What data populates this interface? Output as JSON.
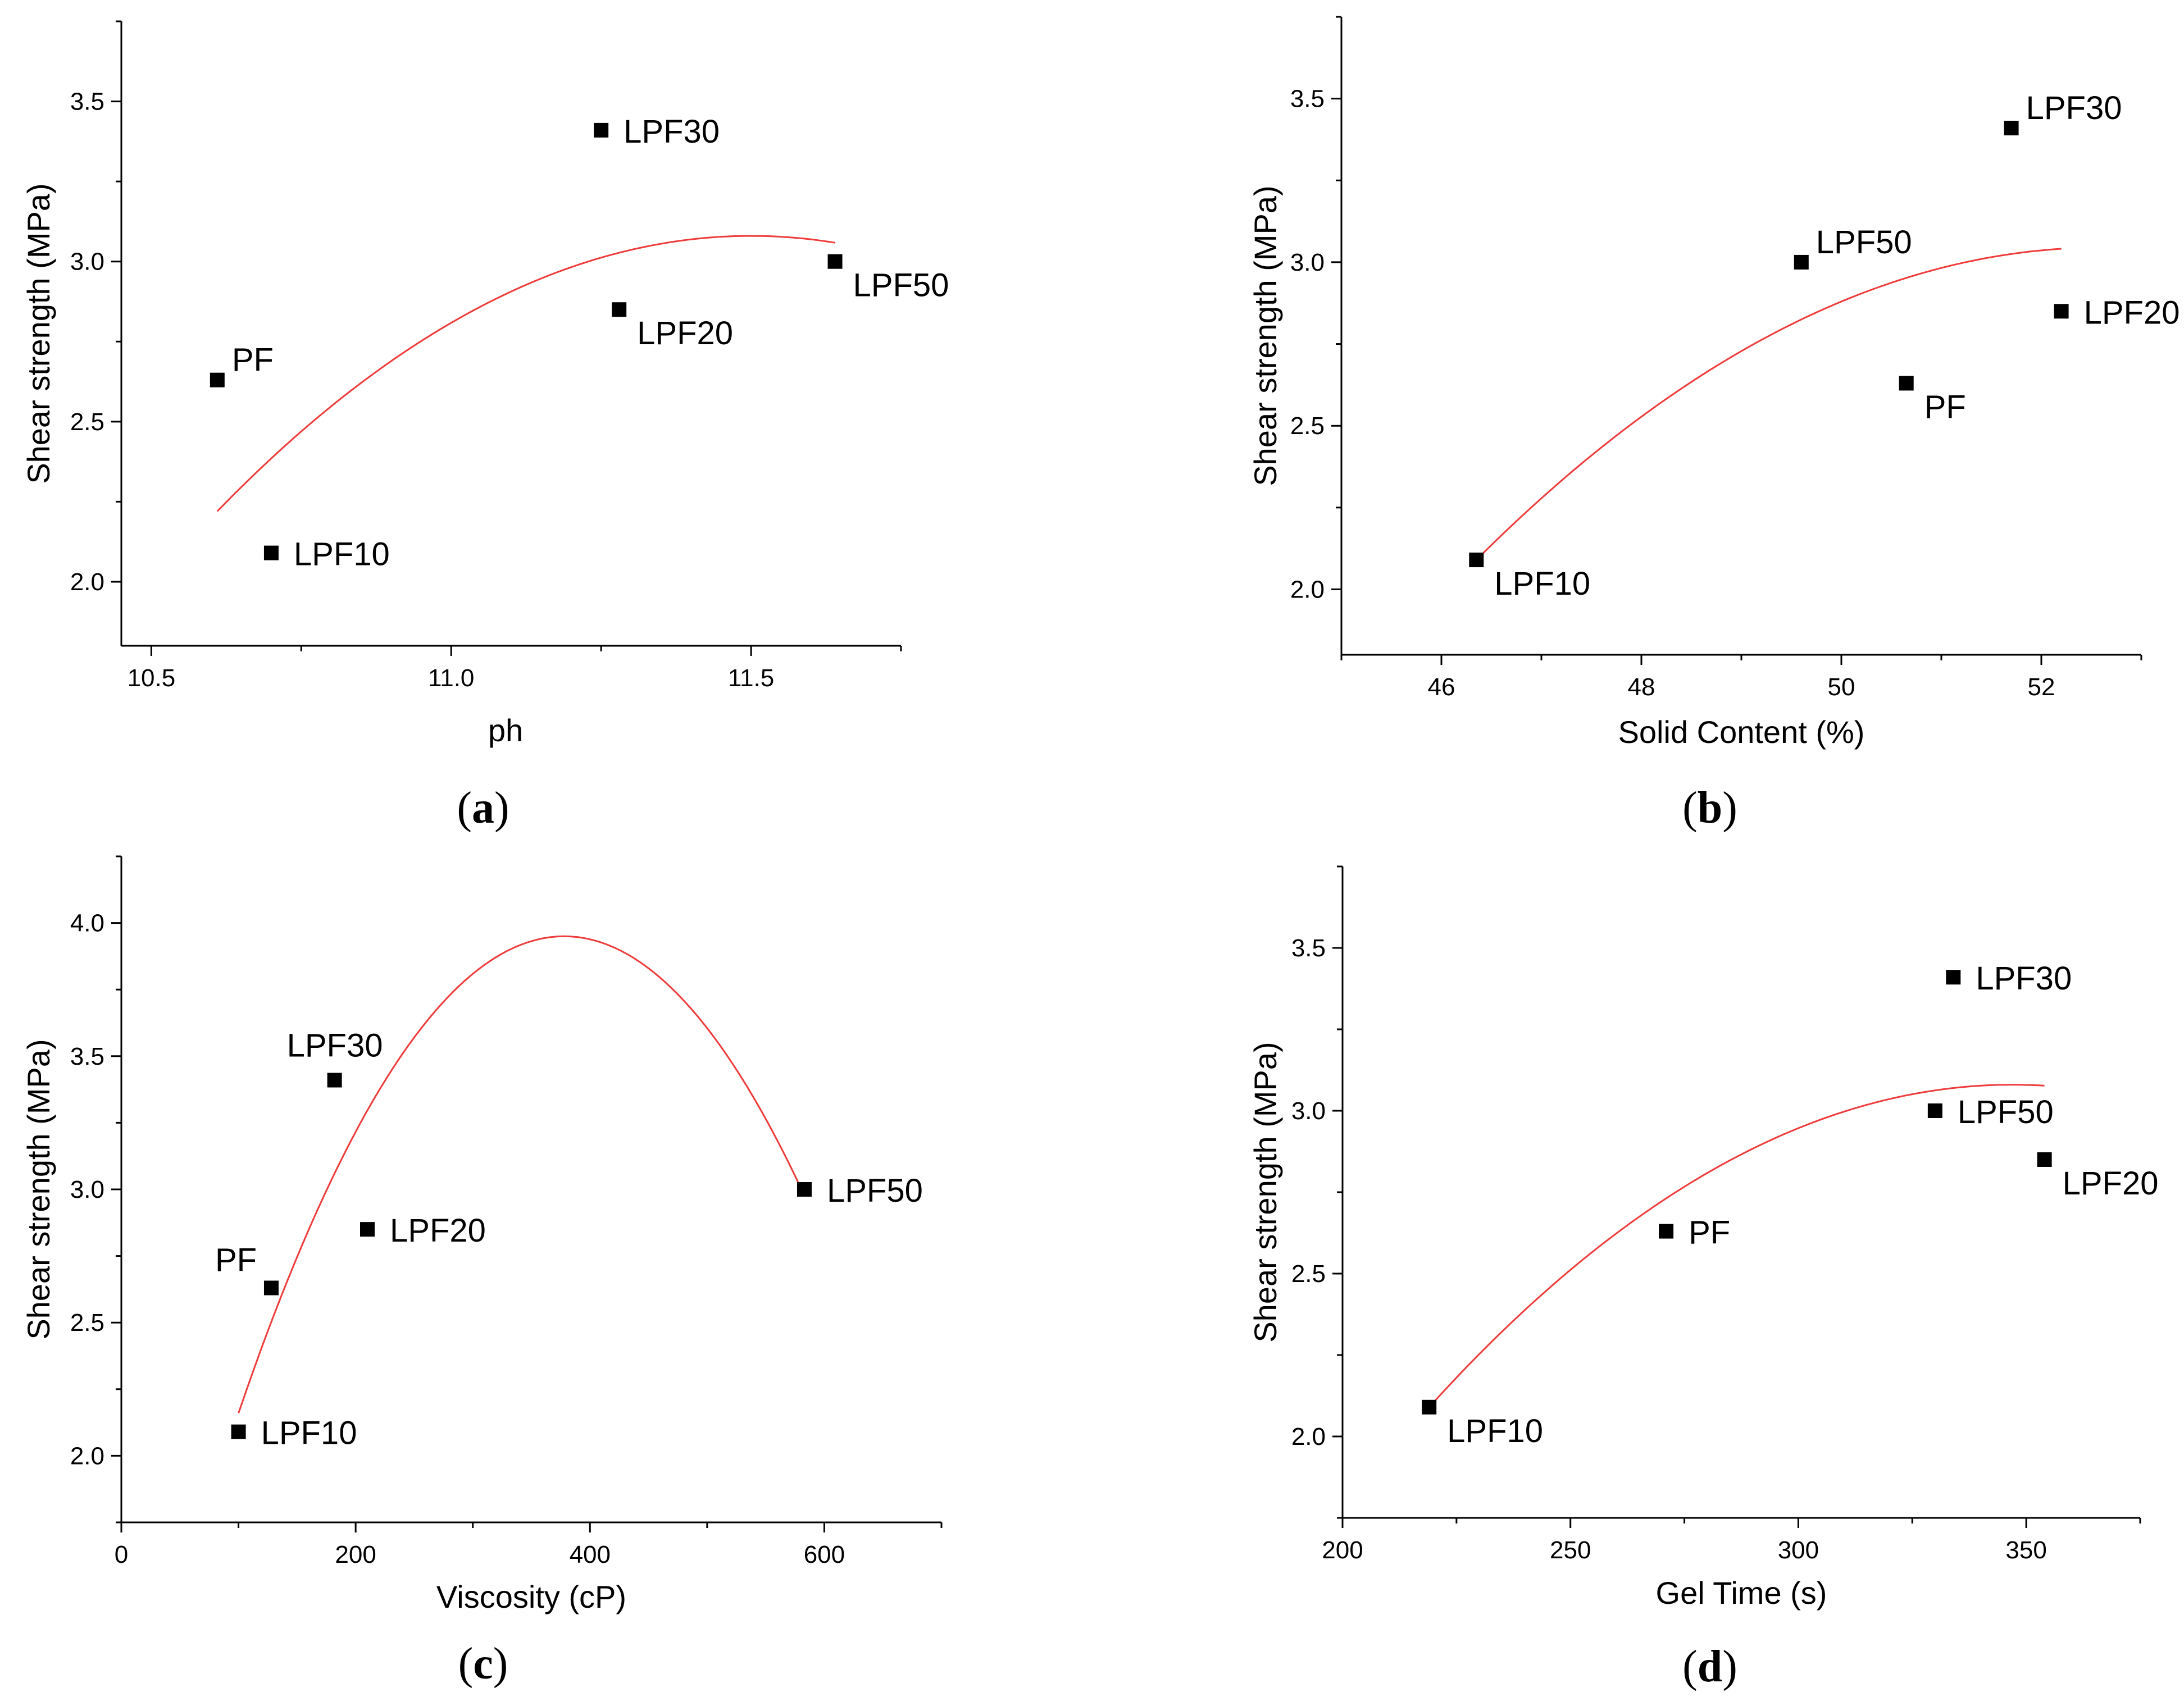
{
  "chart_data": [
    {
      "type": "scatter",
      "panel": "a",
      "xlabel": "ph",
      "ylabel": "Shear strength (MPa)",
      "xlim": [
        10.45,
        11.75
      ],
      "ylim": [
        1.8,
        3.75
      ],
      "xticks": [
        10.5,
        11.0,
        11.5
      ],
      "xtick_labels": [
        "10.5",
        "11.0",
        "11.5"
      ],
      "yticks": [
        2.0,
        2.5,
        3.0,
        3.5
      ],
      "ytick_labels": [
        "2.0",
        "2.5",
        "3.0",
        "3.5"
      ],
      "points": [
        {
          "label": "PF",
          "x": 10.61,
          "y": 2.63,
          "label_pos": "above-right"
        },
        {
          "label": "LPF10",
          "x": 10.7,
          "y": 2.09,
          "label_pos": "right"
        },
        {
          "label": "LPF20",
          "x": 11.28,
          "y": 2.85,
          "label_pos": "below-right"
        },
        {
          "label": "LPF30",
          "x": 11.25,
          "y": 3.41,
          "label_pos": "right"
        },
        {
          "label": "LPF50",
          "x": 11.64,
          "y": 3.0,
          "label_pos": "below-right"
        }
      ],
      "fit": {
        "x_start": 10.61,
        "x_end": 11.64,
        "vertex_x": 11.5,
        "vertex_y": 3.08,
        "y_at_start": 2.22
      }
    },
    {
      "type": "scatter",
      "panel": "b",
      "xlabel": "Solid Content (%)",
      "ylabel": "Shear strength (MPa)",
      "xlim": [
        45.0,
        53.0
      ],
      "ylim": [
        1.8,
        3.75
      ],
      "xticks": [
        46,
        48,
        50,
        52
      ],
      "xtick_labels": [
        "46",
        "48",
        "50",
        "52"
      ],
      "yticks": [
        2.0,
        2.5,
        3.0,
        3.5
      ],
      "ytick_labels": [
        "2.0",
        "2.5",
        "3.0",
        "3.5"
      ],
      "points": [
        {
          "label": "LPF10",
          "x": 46.35,
          "y": 2.09,
          "label_pos": "below-right"
        },
        {
          "label": "LPF50",
          "x": 49.6,
          "y": 3.0,
          "label_pos": "above-right"
        },
        {
          "label": "PF",
          "x": 50.65,
          "y": 2.63,
          "label_pos": "below-right"
        },
        {
          "label": "LPF30",
          "x": 51.7,
          "y": 3.41,
          "label_pos": "above-right"
        },
        {
          "label": "LPF20",
          "x": 52.2,
          "y": 2.85,
          "label_pos": "right"
        }
      ],
      "fit": {
        "x_start": 46.35,
        "x_end": 52.2,
        "vertex_x": 52.6,
        "vertex_y": 3.045,
        "y_at_start": 2.09
      }
    },
    {
      "type": "scatter",
      "panel": "c",
      "xlabel": "Viscosity (cP)",
      "ylabel": "Shear strength (MPa)",
      "xlim": [
        0,
        700
      ],
      "ylim": [
        1.75,
        4.25
      ],
      "xticks": [
        0,
        200,
        400,
        600
      ],
      "xtick_labels": [
        "0",
        "200",
        "400",
        "600"
      ],
      "yticks": [
        2.0,
        2.5,
        3.0,
        3.5,
        4.0
      ],
      "ytick_labels": [
        "2.0",
        "2.5",
        "3.0",
        "3.5",
        "4.0"
      ],
      "points": [
        {
          "label": "LPF10",
          "x": 100,
          "y": 2.09,
          "label_pos": "right"
        },
        {
          "label": "PF",
          "x": 128,
          "y": 2.63,
          "label_pos": "above-left"
        },
        {
          "label": "LPF30",
          "x": 182,
          "y": 3.41,
          "label_pos": "above"
        },
        {
          "label": "LPF20",
          "x": 210,
          "y": 2.85,
          "label_pos": "right"
        },
        {
          "label": "LPF50",
          "x": 583,
          "y": 3.0,
          "label_pos": "right"
        }
      ],
      "fit": {
        "x_start": 100,
        "x_end": 583,
        "vertex_x": 378,
        "vertex_y": 3.95,
        "y_at_start": 2.16
      }
    },
    {
      "type": "scatter",
      "panel": "d",
      "xlabel": "Gel Time (s)",
      "ylabel": "Shear strength (MPa)",
      "xlim": [
        200,
        375
      ],
      "ylim": [
        1.75,
        3.75
      ],
      "xticks": [
        200,
        250,
        300,
        350
      ],
      "xtick_labels": [
        "200",
        "250",
        "300",
        "350"
      ],
      "yticks": [
        2.0,
        2.5,
        3.0,
        3.5
      ],
      "ytick_labels": [
        "2.0",
        "2.5",
        "3.0",
        "3.5"
      ],
      "points": [
        {
          "label": "LPF10",
          "x": 219,
          "y": 2.09,
          "label_pos": "below-right"
        },
        {
          "label": "PF",
          "x": 271,
          "y": 2.63,
          "label_pos": "right"
        },
        {
          "label": "LPF50",
          "x": 330,
          "y": 3.0,
          "label_pos": "right"
        },
        {
          "label": "LPF30",
          "x": 334,
          "y": 3.41,
          "label_pos": "right"
        },
        {
          "label": "LPF20",
          "x": 354,
          "y": 2.85,
          "label_pos": "below-right"
        }
      ],
      "fit": {
        "x_start": 219,
        "x_end": 354,
        "vertex_x": 347,
        "vertex_y": 3.08,
        "y_at_start": 2.09
      }
    }
  ],
  "captions": [
    {
      "open": "(",
      "letter": "a",
      "close": ")"
    },
    {
      "open": "(",
      "letter": "b",
      "close": ")"
    },
    {
      "open": "(",
      "letter": "c",
      "close": ")"
    },
    {
      "open": "(",
      "letter": "d",
      "close": ")"
    }
  ]
}
